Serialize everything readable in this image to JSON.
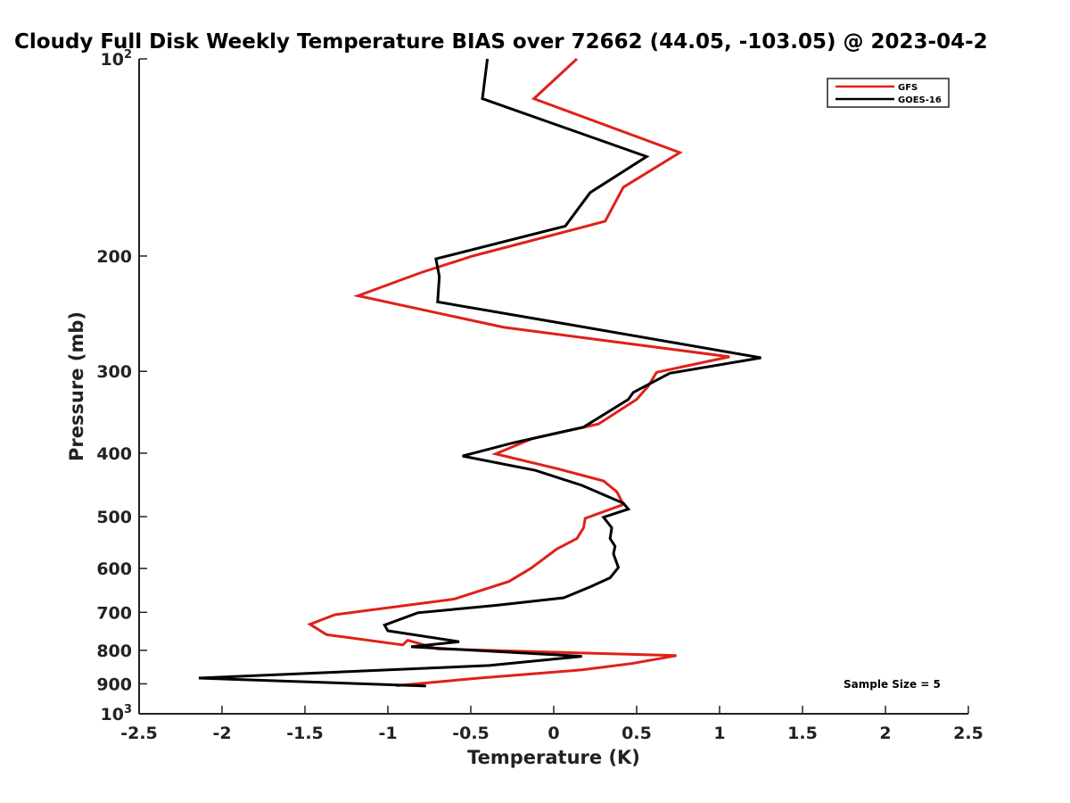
{
  "chart_data": {
    "type": "line",
    "title": "Cloudy Full Disk Weekly Temperature BIAS over 72662 (44.05, -103.05) @ 2023-04-2",
    "xlabel": "Temperature (K)",
    "ylabel": "Pressure (mb)",
    "xlim": [
      -2.5,
      2.5
    ],
    "ylim": [
      100,
      1000
    ],
    "y_scale": "log",
    "y_reversed": true,
    "grid": false,
    "legend_position": "top-right",
    "x_ticks": [
      -2.5,
      -2,
      -1.5,
      -1,
      -0.5,
      0,
      0.5,
      1,
      1.5,
      2,
      2.5
    ],
    "x_tick_labels": [
      "-2.5",
      "-2",
      "-1.5",
      "-1",
      "-0.5",
      "0",
      "0.5",
      "1",
      "1.5",
      "2",
      "2.5"
    ],
    "y_ticks": [
      200,
      300,
      400,
      500,
      600,
      700,
      800,
      900
    ],
    "y_tick_labels": [
      "200",
      "300",
      "400",
      "500",
      "600",
      "700",
      "800",
      "900"
    ],
    "y_end_labels": [
      {
        "value": 100,
        "base": "10",
        "exp": "2"
      },
      {
        "value": 1000,
        "base": "10",
        "exp": "3"
      }
    ],
    "annotation": "Sample Size = 5",
    "series": [
      {
        "name": "GFS",
        "color": "#e0201a",
        "points": [
          [
            0.14,
            100
          ],
          [
            -0.12,
            115
          ],
          [
            0.76,
            139
          ],
          [
            0.42,
            157
          ],
          [
            0.31,
            177
          ],
          [
            -0.49,
            200
          ],
          [
            -0.8,
            212
          ],
          [
            -1.18,
            230
          ],
          [
            -0.3,
            257
          ],
          [
            1.06,
            285
          ],
          [
            0.62,
            301
          ],
          [
            0.57,
            316
          ],
          [
            0.5,
            331
          ],
          [
            0.27,
            361
          ],
          [
            -0.13,
            380
          ],
          [
            -0.35,
            401
          ],
          [
            0.03,
            423
          ],
          [
            0.3,
            441
          ],
          [
            0.38,
            458
          ],
          [
            0.42,
            479
          ],
          [
            0.19,
            503
          ],
          [
            0.18,
            520
          ],
          [
            0.14,
            540
          ],
          [
            0.02,
            560
          ],
          [
            -0.14,
            600
          ],
          [
            -0.27,
            628
          ],
          [
            -0.6,
            668
          ],
          [
            -1.32,
            706
          ],
          [
            -1.47,
            730
          ],
          [
            -1.37,
            757
          ],
          [
            -0.91,
            785
          ],
          [
            -0.88,
            772
          ],
          [
            -0.7,
            796
          ],
          [
            0.74,
            815
          ],
          [
            0.47,
            838
          ],
          [
            0.17,
            857
          ],
          [
            -0.45,
            882
          ],
          [
            -0.95,
            906
          ]
        ]
      },
      {
        "name": "GOES-16",
        "color": "#000000",
        "points": [
          [
            -0.4,
            100
          ],
          [
            -0.43,
            115
          ],
          [
            0.56,
            141
          ],
          [
            0.22,
            160
          ],
          [
            0.07,
            180
          ],
          [
            -0.71,
            202
          ],
          [
            -0.69,
            215
          ],
          [
            -0.7,
            235
          ],
          [
            0.23,
            258
          ],
          [
            1.25,
            286
          ],
          [
            0.7,
            302
          ],
          [
            0.48,
            323
          ],
          [
            0.45,
            331
          ],
          [
            0.18,
            365
          ],
          [
            -0.25,
            386
          ],
          [
            -0.55,
            404
          ],
          [
            -0.11,
            425
          ],
          [
            0.17,
            448
          ],
          [
            0.42,
            477
          ],
          [
            0.45,
            487
          ],
          [
            0.3,
            501
          ],
          [
            0.35,
            520
          ],
          [
            0.34,
            540
          ],
          [
            0.37,
            555
          ],
          [
            0.36,
            570
          ],
          [
            0.39,
            598
          ],
          [
            0.34,
            620
          ],
          [
            0.22,
            640
          ],
          [
            0.06,
            665
          ],
          [
            -0.35,
            683
          ],
          [
            -0.82,
            701
          ],
          [
            -1.02,
            732
          ],
          [
            -1.0,
            747
          ],
          [
            -0.57,
            776
          ],
          [
            -0.86,
            790
          ],
          [
            0.17,
            817
          ],
          [
            -0.39,
            844
          ],
          [
            -2.14,
            882
          ],
          [
            -0.77,
            907
          ]
        ]
      }
    ]
  }
}
